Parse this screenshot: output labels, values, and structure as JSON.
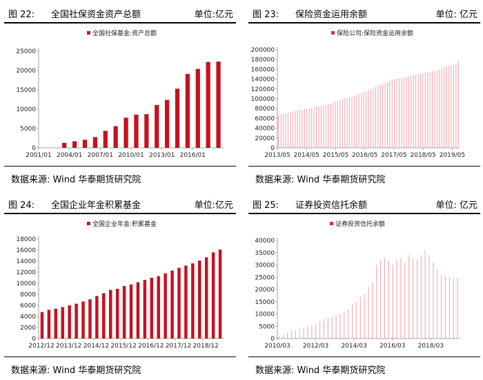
{
  "panels": [
    {
      "fig": "图 22:",
      "title": "全国社保资金资产总额",
      "unit": "单位:亿元",
      "source": "数据来源:  Wind  华泰期货研究院"
    },
    {
      "fig": "图 23:",
      "title": "保险资金运用余额",
      "unit": "单位: 亿元",
      "source": "数据来源:  Wind  华泰期货研究院"
    },
    {
      "fig": "图 24:",
      "title": "全国企业年金积累基金",
      "unit": "单位:亿元",
      "source": "数据来源:  Wind  华泰期货研究院"
    },
    {
      "fig": "图 25:",
      "title": "证券投资信托余额",
      "unit": "单位: 亿元",
      "source": "数据来源:  Wind  华泰期货研究院"
    }
  ],
  "chart_data": [
    {
      "type": "bar",
      "legend": "全国社保基金:资产总额",
      "color": "#c8101f",
      "y_ticks": [
        "0",
        "5000",
        "10000",
        "15000",
        "20000",
        "25000"
      ],
      "ylim": [
        0,
        25000
      ],
      "x_ticks": [
        "2001/01",
        "2004/01",
        "2007/01",
        "2010/01",
        "2013/01",
        "2016/01"
      ],
      "categories": [
        "2001",
        "2002",
        "2003",
        "2004",
        "2005",
        "2006",
        "2007",
        "2008",
        "2009",
        "2010",
        "2011",
        "2012",
        "2013",
        "2014",
        "2015",
        "2016",
        "2017",
        "2018"
      ],
      "values": [
        0,
        0,
        1300,
        1700,
        2100,
        2800,
        4400,
        5600,
        7800,
        8600,
        8700,
        11100,
        12400,
        15300,
        19100,
        20400,
        22200,
        22300
      ]
    },
    {
      "type": "bar",
      "legend": "保险公司:保险资金运用余额",
      "color": "#f2a8ae",
      "y_ticks": [
        "0",
        "20000",
        "40000",
        "60000",
        "80000",
        "100000",
        "120000",
        "140000",
        "160000",
        "180000",
        "200000"
      ],
      "ylim": [
        0,
        200000
      ],
      "x_ticks": [
        "2013/05",
        "2014/05",
        "2015/05",
        "2016/05",
        "2017/05",
        "2018/05",
        "2019/05"
      ],
      "x_range": [
        "2013-05",
        "2019-08"
      ],
      "values_start": "2013-05",
      "values": [
        68000,
        69000,
        70000,
        71000,
        72000,
        73000,
        74000,
        75000,
        76000,
        77000,
        78000,
        79000,
        80000,
        81000,
        82000,
        83000,
        84000,
        85000,
        86000,
        87000,
        88000,
        89000,
        90000,
        92000,
        94000,
        96000,
        98000,
        100000,
        101000,
        102000,
        103000,
        104000,
        106000,
        108000,
        110000,
        112000,
        114000,
        116000,
        118000,
        120000,
        122000,
        124000,
        126000,
        128000,
        130000,
        132000,
        134000,
        136000,
        138000,
        140000,
        141000,
        142000,
        143000,
        144000,
        145000,
        146000,
        147000,
        148000,
        149000,
        150000,
        151000,
        152000,
        153000,
        154000,
        155000,
        156000,
        157000,
        158000,
        160000,
        162000,
        164000,
        166000,
        167000,
        168000,
        169000,
        172000,
        178000
      ]
    },
    {
      "type": "bar",
      "legend": "全国企业年金:积累基金",
      "color": "#c8101f",
      "y_ticks": [
        "0",
        "2000",
        "4000",
        "6000",
        "8000",
        "10000",
        "12000",
        "14000",
        "16000",
        "18000"
      ],
      "ylim": [
        0,
        18000
      ],
      "x_ticks": [
        "2012/12",
        "2013/12",
        "2014/12",
        "2015/12",
        "2016/12",
        "2017/12",
        "2018/12"
      ],
      "values": [
        4800,
        5200,
        5400,
        5700,
        6000,
        6300,
        6700,
        7100,
        7700,
        8200,
        8800,
        9000,
        9500,
        9800,
        10200,
        10600,
        11000,
        11300,
        11800,
        12300,
        12800,
        13200,
        13600,
        14100,
        14700,
        15600,
        16100
      ]
    },
    {
      "type": "bar",
      "legend": "证券投资信托余额",
      "color": "#f2a8ae",
      "y_ticks": [
        "0",
        "5000",
        "10000",
        "15000",
        "20000",
        "25000",
        "30000",
        "35000",
        "40000"
      ],
      "ylim": [
        0,
        40000
      ],
      "x_ticks": [
        "2010/03",
        "2012/03",
        "2014/03",
        "2016/03",
        "2018/03"
      ],
      "x_range": [
        "2010-03",
        "2019-09"
      ],
      "values_start": "2010-03",
      "values": [
        1000,
        1500,
        2500,
        3000,
        3500,
        4000,
        4500,
        5000,
        5500,
        6000,
        7000,
        8000,
        8500,
        9000,
        9500,
        10000,
        11000,
        12000,
        14000,
        15000,
        17000,
        18000,
        21000,
        23000,
        30000,
        32000,
        33000,
        32000,
        30000,
        32000,
        33000,
        31000,
        34000,
        33000,
        32000,
        34000,
        36000,
        34000,
        31000,
        28000,
        26000,
        25500,
        25000,
        24500,
        25000
      ]
    }
  ]
}
